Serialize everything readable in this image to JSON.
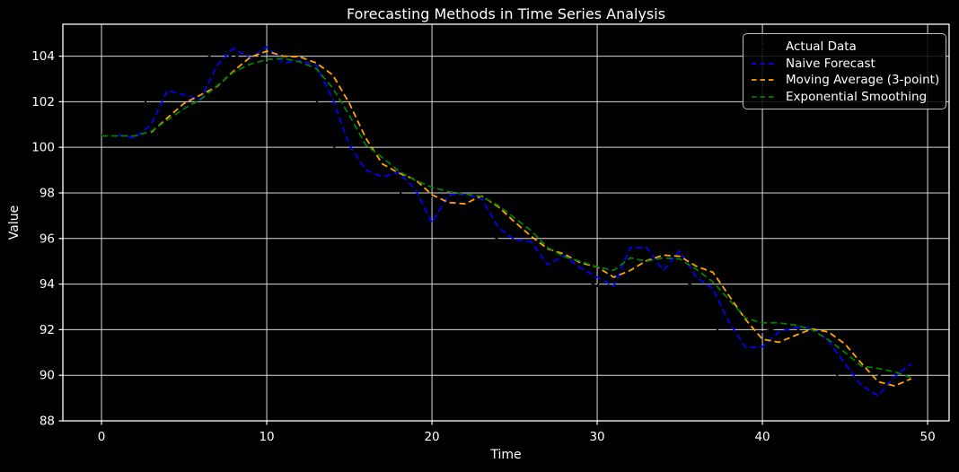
{
  "title": "Forecasting Methods in Time Series Analysis",
  "axes": {
    "xlabel": "Time",
    "ylabel": "Value",
    "x_ticks": [
      0,
      10,
      20,
      30,
      40,
      50
    ],
    "y_ticks": [
      88,
      90,
      92,
      94,
      96,
      98,
      100,
      102,
      104
    ],
    "background_color": "#000000",
    "text_color": "#ffffff",
    "grid_color": "#d9d9d9",
    "spine_color": "#ffffff"
  },
  "legend": {
    "position": "upper right",
    "entries": [
      "Actual Data",
      "Naive Forecast",
      "Moving Average (3-point)",
      "Exponential Smoothing"
    ]
  },
  "chart_data": {
    "type": "line",
    "title": "Forecasting Methods in Time Series Analysis",
    "xlabel": "Time",
    "ylabel": "Value",
    "xlim": [
      -2.34,
      51.3
    ],
    "ylim": [
      88,
      105.4
    ],
    "grid": true,
    "legend_position": "upper right",
    "series": [
      {
        "name": "Actual Data",
        "color": "#000000",
        "style": "solid",
        "x_start": 0,
        "values": [
          100.55,
          100.4,
          101.0,
          102.5,
          102.3,
          102.1,
          103.6,
          104.35,
          103.9,
          104.4,
          103.7,
          103.8,
          103.6,
          102.1,
          100.1,
          99.0,
          98.7,
          98.9,
          98.15,
          96.7,
          97.9,
          97.95,
          97.75,
          96.5,
          95.95,
          95.85,
          94.85,
          95.25,
          94.7,
          94.3,
          93.9,
          95.6,
          95.6,
          94.6,
          95.45,
          94.3,
          93.8,
          92.3,
          91.2,
          91.25,
          91.9,
          92.1,
          92.1,
          91.5,
          90.5,
          89.55,
          89.1,
          89.95,
          90.5,
          90.2
        ]
      },
      {
        "name": "Naive Forecast",
        "color": "#0000ff",
        "style": "dashed",
        "x_start": 1,
        "values": [
          100.55,
          100.4,
          101.0,
          102.5,
          102.3,
          102.1,
          103.6,
          104.35,
          103.9,
          104.4,
          103.7,
          103.8,
          103.6,
          102.1,
          100.1,
          99.0,
          98.7,
          98.9,
          98.15,
          96.7,
          97.9,
          97.95,
          97.75,
          96.5,
          95.95,
          95.85,
          94.85,
          95.25,
          94.7,
          94.3,
          93.9,
          95.6,
          95.6,
          94.6,
          95.45,
          94.3,
          93.8,
          92.3,
          91.2,
          91.25,
          91.9,
          92.1,
          92.1,
          91.5,
          90.5,
          89.55,
          89.1,
          89.95,
          90.5
        ]
      },
      {
        "name": "Moving Average (3-point)",
        "color": "#ffa500",
        "style": "dashed",
        "x_start": 3,
        "values": [
          100.65,
          101.3,
          101.93,
          102.3,
          102.67,
          103.35,
          103.95,
          104.22,
          104.0,
          103.97,
          103.7,
          103.17,
          101.93,
          100.4,
          99.27,
          98.87,
          98.58,
          97.92,
          97.58,
          97.52,
          97.87,
          97.4,
          96.73,
          96.1,
          95.55,
          95.32,
          94.93,
          94.75,
          94.3,
          94.6,
          95.03,
          95.27,
          95.22,
          94.78,
          94.52,
          93.47,
          92.43,
          91.58,
          91.45,
          91.75,
          92.03,
          91.9,
          91.37,
          90.52,
          89.72,
          89.53,
          89.85
        ]
      },
      {
        "name": "Exponential Smoothing",
        "color": "#008000",
        "style": "dashed",
        "x_start": 0,
        "values": [
          100.5,
          100.5,
          100.5,
          100.7,
          101.2,
          101.7,
          102.1,
          102.7,
          103.3,
          103.65,
          103.85,
          103.9,
          103.75,
          103.45,
          102.6,
          101.4,
          100.1,
          99.55,
          98.95,
          98.55,
          98.25,
          98.05,
          97.95,
          97.85,
          97.45,
          96.9,
          96.35,
          95.6,
          95.2,
          95.0,
          94.75,
          94.6,
          95.15,
          95.0,
          95.15,
          95.1,
          94.65,
          94.1,
          93.3,
          92.5,
          92.3,
          92.3,
          92.2,
          92.0,
          91.55,
          91.0,
          90.4,
          90.3,
          90.15,
          89.9
        ]
      }
    ]
  }
}
